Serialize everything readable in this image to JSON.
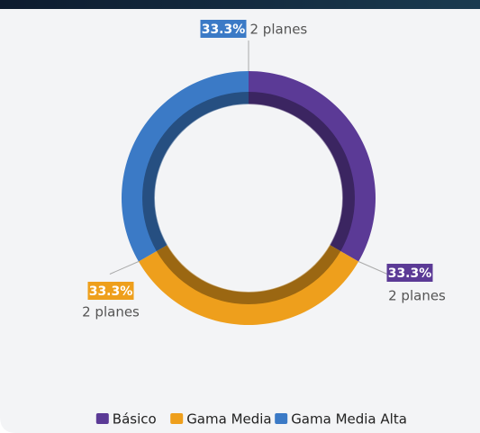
{
  "chart_data": {
    "type": "pie",
    "categories": [
      "Básico",
      "Gama Media",
      "Gama Media Alta"
    ],
    "values": [
      33.3,
      33.3,
      33.3
    ],
    "value_labels": [
      "33.3%",
      "33.3%",
      "33.3%"
    ],
    "sublabels": [
      "2 planes",
      "2 planes",
      "2 planes"
    ],
    "colors": [
      "#5b3a96",
      "#ee9f1c",
      "#3b7ac6"
    ],
    "legend": "bottom"
  }
}
